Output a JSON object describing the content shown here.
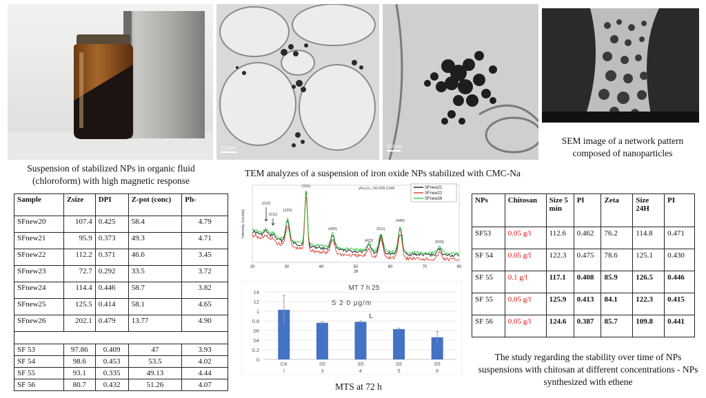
{
  "captions": {
    "suspension": "Suspension of stabilized NPs in organic fluid (chloroform) with high magnetic response",
    "tem": "TEM analyzes of a suspension of iron oxide NPs stabilized with CMC-Na",
    "sem": "SEM image of a network pattern composed of nanoparticles",
    "mts": "MTS at 72 h",
    "stability": "The study regarding the stability over time of NPs suspensions with chitosan at different concentrations - NPs synthesized with ethene"
  },
  "scale_bars": {
    "tem1": "0.5 μm",
    "tem2": "100 nm"
  },
  "left_table": {
    "headers": [
      "Sample",
      "Zsize",
      "DPI",
      "Z-pot (conc)",
      "Ph-"
    ],
    "rows": [
      [
        "SFnew20",
        "107.4",
        "0.425",
        "58.4",
        "4.79"
      ],
      [
        "SFnew21",
        "95.9",
        "0.373",
        "49.3",
        "4.71"
      ],
      [
        "SFnew22",
        "112.2",
        "0.371",
        "46.6",
        "3.45"
      ],
      [
        "SFnew23",
        "72.7",
        "0.292",
        "33.5",
        "3.72"
      ],
      [
        "SFnew24",
        "114.4",
        "0.446",
        "58.7",
        "3.82"
      ],
      [
        "SFnew25",
        "125.5",
        "0.414",
        "58.1",
        "4.65"
      ],
      [
        "SFnew26",
        "202.1",
        "0.479",
        "13.77",
        "4.90"
      ]
    ],
    "rows2": [
      [
        "SF 53",
        "97.86",
        "0.409",
        "47",
        "3.93"
      ],
      [
        "SF 54",
        "98.6",
        "0.453",
        "53.5",
        "4.02"
      ],
      [
        "SF 55",
        "93.1",
        "0.335",
        "49.13",
        "4.44"
      ],
      [
        "SF 56",
        "80.7",
        "0.432",
        "51.26",
        "4.07"
      ]
    ]
  },
  "right_table": {
    "headers": [
      "NPs",
      "Chitosan",
      "Size 5 min",
      "PI",
      "Zeta",
      "Size 24H",
      "PI"
    ],
    "rows": [
      {
        "cells": [
          "SF53",
          "0.05 g/l",
          "112.6",
          "0.462",
          "76.2",
          "114.8",
          "0.471"
        ],
        "bold": false
      },
      {
        "cells": [
          "SF 54",
          "0.05 g/l",
          "122.3",
          "0.475",
          "78.6",
          "125.1",
          "0.430"
        ],
        "bold": false
      },
      {
        "cells": [
          "SF 55",
          "0.1 g/l",
          "117.1",
          "0.408",
          "85.9",
          "126.5",
          "0.446"
        ],
        "bold": true
      },
      {
        "cells": [
          "SF 55",
          "0.05 g/l",
          "125.9",
          "0.413",
          "84.1",
          "122.3",
          "0.415"
        ],
        "bold": true
      },
      {
        "cells": [
          "SF 56",
          "0.05 g/l",
          "124.6",
          "0.387",
          "85.7",
          "109.8",
          "0.441"
        ],
        "bold": true
      }
    ]
  },
  "chart_data": [
    {
      "type": "line",
      "ylabel": "Intensity (counts)",
      "xlabel": "2θ",
      "reference": "γFe₂O₃- 00-039-1346",
      "xlim": [
        20,
        80
      ],
      "xticks": [
        "20",
        "30",
        "40",
        "50",
        "60",
        "70",
        "80"
      ],
      "peaks": [
        {
          "label": "(210)",
          "x": 24
        },
        {
          "label": "(211)",
          "x": 26
        },
        {
          "label": "(220)",
          "x": 30.2
        },
        {
          "label": "(311)",
          "x": 35.6
        },
        {
          "label": "(400)",
          "x": 43.3
        },
        {
          "label": "(422)",
          "x": 53.8
        },
        {
          "label": "(511)",
          "x": 57.3
        },
        {
          "label": "(440)",
          "x": 62.9
        },
        {
          "label": "(533)",
          "x": 74.3
        }
      ],
      "series": [
        {
          "name": "SFnew21",
          "color": "#1a1a1a"
        },
        {
          "name": "SFnew22",
          "color": "#e03a2a"
        },
        {
          "name": "SFnew26",
          "color": "#2ecc40"
        }
      ]
    },
    {
      "type": "bar",
      "title": "MT 7 h 25",
      "subtitle": "S 2 0 μg/m",
      "subtitle2": "L",
      "ylim": [
        0,
        1.4
      ],
      "yticks": [
        "0",
        "0.2",
        "0.4",
        "0.6",
        "0.8",
        "1",
        "1.2",
        "1.4"
      ],
      "ytick_labels": [
        "0",
        "0.2",
        "04",
        "06",
        "0.8",
        "1",
        "12",
        "14"
      ],
      "categories": [
        "Ctr",
        "S5",
        "S5",
        "S5",
        "S5"
      ],
      "categories2": [
        "l",
        "3",
        "4",
        "5",
        "6"
      ],
      "values": [
        1.03,
        0.76,
        0.78,
        0.63,
        0.46
      ],
      "errors": [
        0.3,
        0.02,
        0.02,
        0.02,
        0.12
      ],
      "color": "#4472c4"
    }
  ]
}
